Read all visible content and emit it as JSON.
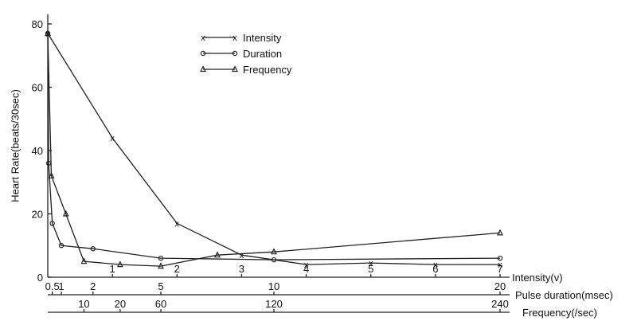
{
  "chart_data": {
    "type": "line",
    "title": "",
    "ylabel": "Heart Rate(beats/30sec)",
    "ylim": [
      0,
      80
    ],
    "yticks": [
      0,
      20,
      40,
      60,
      80
    ],
    "ytick_labels": [
      "0",
      "20",
      "40",
      "60",
      "80"
    ],
    "x_axes": [
      {
        "key": "intensity",
        "label": "Intensity(v)",
        "range": [
          0,
          7
        ],
        "ticks": [
          1,
          2,
          3,
          4,
          5,
          6,
          7
        ],
        "tick_labels": [
          "1",
          "2",
          "3",
          "4",
          "5",
          "6",
          "7"
        ]
      },
      {
        "key": "duration",
        "label": "Pulse duration(msec)",
        "range": [
          0,
          20
        ],
        "ticks": [
          0.5,
          1,
          2,
          5,
          10,
          20
        ],
        "tick_labels": [
          "0.5",
          "1",
          "2",
          "5",
          "10",
          "20"
        ]
      },
      {
        "key": "frequency",
        "label": "Frequency(/sec)",
        "range": [
          0,
          240
        ],
        "ticks": [
          10,
          20,
          60,
          120,
          240
        ],
        "tick_labels": [
          "10",
          "20",
          "60",
          "120",
          "240"
        ]
      }
    ],
    "series": [
      {
        "name": "Intensity",
        "marker": "x",
        "x_axis": "intensity",
        "x": [
          0,
          1,
          2,
          3,
          4,
          5,
          6,
          7
        ],
        "y": [
          77,
          44,
          17,
          7,
          4,
          4.5,
          4,
          4
        ]
      },
      {
        "name": "Duration",
        "marker": "circle",
        "x_axis": "duration",
        "x": [
          0,
          0.1,
          0.5,
          1,
          2,
          5,
          10,
          20
        ],
        "y": [
          77,
          36,
          17,
          10,
          9,
          6,
          5.5,
          6
        ]
      },
      {
        "name": "Frequency",
        "marker": "triangle",
        "x_axis": "frequency",
        "x": [
          0,
          1,
          5,
          10,
          20,
          60,
          90,
          120,
          240
        ],
        "y": [
          77,
          32,
          20,
          5,
          4,
          3.5,
          7,
          8,
          14
        ]
      }
    ],
    "legend": {
      "position": "top-center",
      "entries": [
        "Intensity",
        "Duration",
        "Frequency"
      ]
    },
    "grid": false
  }
}
